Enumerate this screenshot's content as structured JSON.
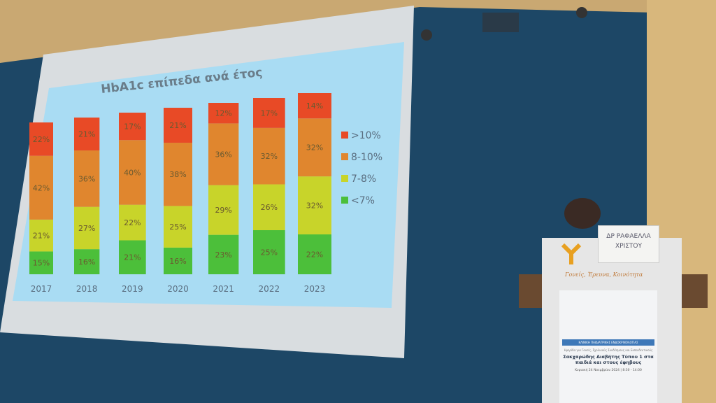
{
  "chart_data": {
    "type": "stacked-bar",
    "title": "HbA1c επίπεδα ανά έτος",
    "categories": [
      "2017",
      "2018",
      "2019",
      "2020",
      "2021",
      "2022",
      "2023"
    ],
    "series": [
      {
        "name": "<7%",
        "color": "#4cbf3a",
        "values": [
          15,
          16,
          21,
          16,
          23,
          25,
          22
        ]
      },
      {
        "name": "7-8%",
        "color": "#c8d42a",
        "values": [
          21,
          27,
          22,
          25,
          29,
          26,
          32
        ]
      },
      {
        "name": "8-10%",
        "color": "#e0862e",
        "values": [
          42,
          36,
          40,
          38,
          36,
          32,
          32
        ]
      },
      {
        "name": ">10%",
        "color": "#e84a26",
        "values": [
          22,
          21,
          17,
          21,
          12,
          17,
          14
        ]
      }
    ],
    "legend_order": [
      ">10%",
      "8-10%",
      "7-8%",
      "<7%"
    ],
    "legend_position": "right",
    "ylim": [
      0,
      100
    ],
    "grid": true,
    "data_labels": true
  },
  "podium": {
    "name_line1": "ΔΡ ΡΑΦΑΕΛΛΑ",
    "name_line2": "ΧΡΙΣΤΟΥ",
    "motto": "Γονείς, Έρευνα, Κοινότητα"
  },
  "poster": {
    "band": "ΚΛΙΝΙΚΗ ΠΑΙΔΙΑΤΡΙΚΗΣ ΕΝΔΟΚΡΙΝΟΛΟΓΙΑΣ",
    "subtitle": "Ημερίδα για Γονείς, Σχολικούς Συνδέσμους και Εκπαιδευτικούς",
    "title": "Σακχαρώδης Διαβήτης Τύπου 1 στα παιδιά και στους έφηβους",
    "date": "Κυριακή 24 Νοεμβρίου 2024 | 8:30 - 14:00"
  }
}
